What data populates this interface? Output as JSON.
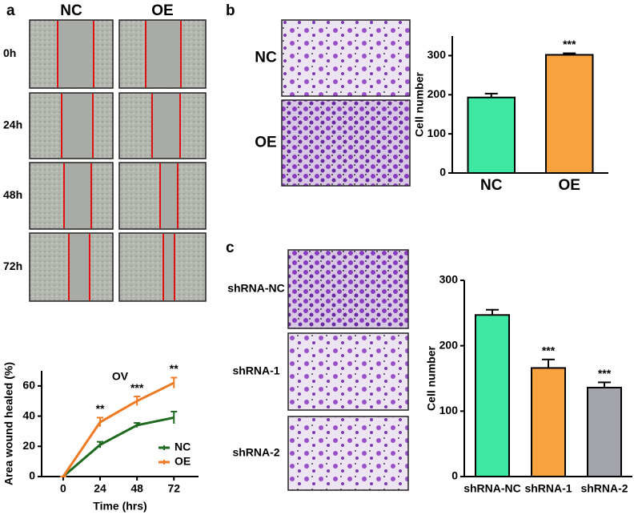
{
  "panels": {
    "a": {
      "label": "a",
      "columns": [
        "NC",
        "OE"
      ],
      "rows": [
        "0h",
        "24h",
        "48h",
        "72h"
      ]
    },
    "b": {
      "label": "b",
      "rows": [
        "NC",
        "OE"
      ]
    },
    "c": {
      "label": "c",
      "rows": [
        "shRNA-NC",
        "shRNA-1",
        "shRNA-2"
      ]
    }
  },
  "chart_data": [
    {
      "type": "line",
      "title": "OV",
      "xlabel": "Time (hrs)",
      "ylabel": "Area wound healed (%)",
      "x": [
        0,
        24,
        48,
        72
      ],
      "xlim": [
        -14,
        88
      ],
      "xticks": [
        0,
        24,
        48,
        72
      ],
      "ylim": [
        0,
        70
      ],
      "yticks": [
        0,
        20,
        40,
        60
      ],
      "legend": "lower right",
      "series": [
        {
          "name": "NC",
          "color": "#1e6a1e",
          "values": [
            0,
            21,
            34,
            39
          ],
          "errors": [
            0,
            2,
            1.5,
            4
          ]
        },
        {
          "name": "OE",
          "color": "#f07a24",
          "values": [
            0,
            36,
            50,
            62
          ],
          "errors": [
            0,
            3,
            3,
            3.5
          ]
        }
      ],
      "annotations": [
        null,
        "**",
        "***",
        "**"
      ]
    },
    {
      "type": "bar",
      "ylabel": "Cell number",
      "categories": [
        "NC",
        "OE"
      ],
      "values": [
        193,
        302
      ],
      "errors": [
        10,
        4
      ],
      "colors": [
        "#3fe8a2",
        "#f9a240"
      ],
      "ylim": [
        0,
        350
      ],
      "yticks": [
        0,
        100,
        200,
        300
      ],
      "annotations": [
        null,
        "***"
      ]
    },
    {
      "type": "bar",
      "ylabel": "Cell number",
      "categories": [
        "shRNA-NC",
        "shRNA-1",
        "shRNA-2"
      ],
      "values": [
        247,
        166,
        136
      ],
      "errors": [
        8,
        13,
        8
      ],
      "colors": [
        "#3fe8a2",
        "#f9a240",
        "#a4a4ac"
      ],
      "ylim": [
        0,
        300
      ],
      "yticks": [
        0,
        100,
        200,
        300
      ],
      "annotations": [
        null,
        "***",
        "***"
      ]
    }
  ]
}
